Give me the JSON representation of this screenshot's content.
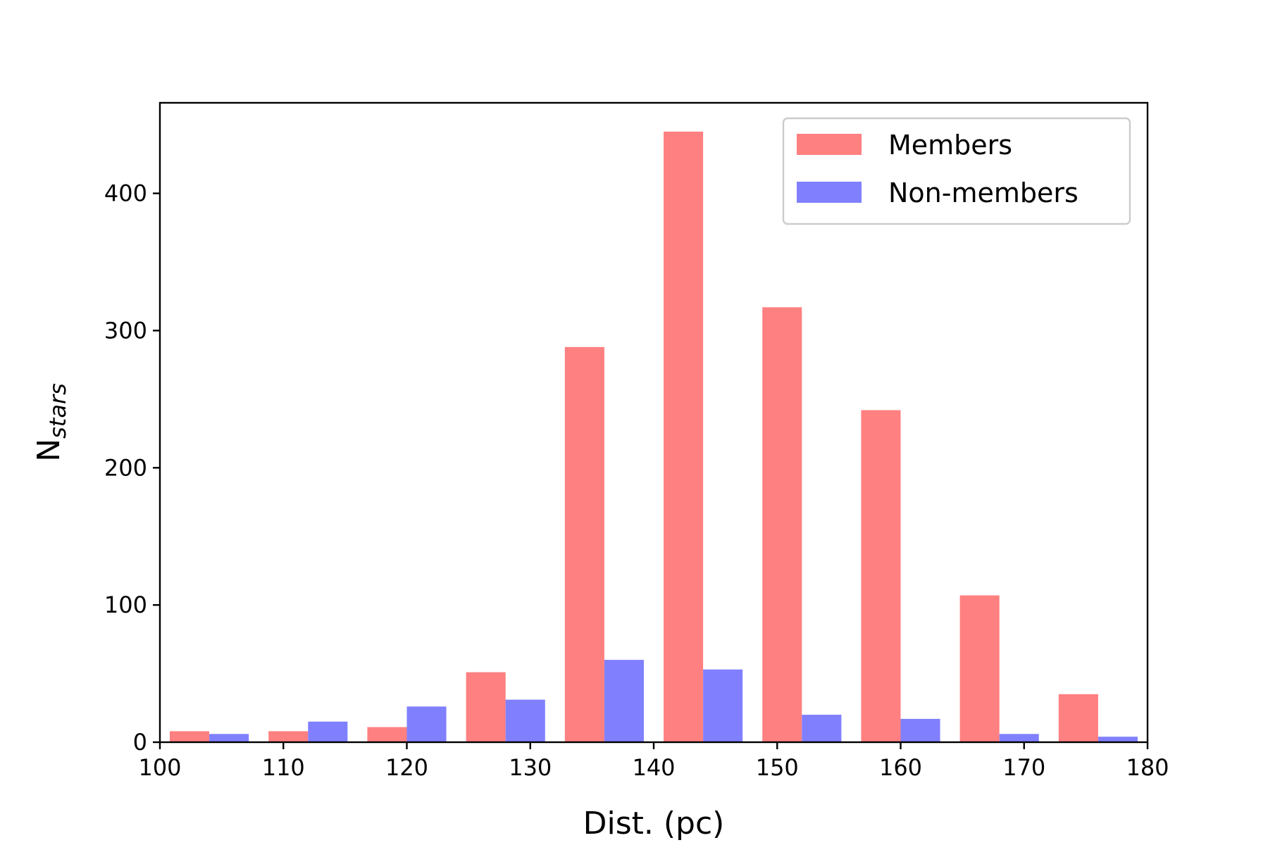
{
  "chart_data": {
    "type": "bar",
    "xlabel": "Dist. (pc)",
    "ylabel_main": "N",
    "ylabel_sub": "stars",
    "xlim": [
      100,
      180
    ],
    "ylim": [
      0,
      466
    ],
    "x_ticks": [
      100,
      110,
      120,
      130,
      140,
      150,
      160,
      170,
      180
    ],
    "y_ticks": [
      0,
      100,
      200,
      300,
      400
    ],
    "bin_edges": [
      100,
      108,
      116,
      124,
      132,
      140,
      148,
      156,
      164,
      172,
      180
    ],
    "series": [
      {
        "name": "Members",
        "color": "#ff8080",
        "values": [
          8,
          8,
          11,
          51,
          288,
          445,
          317,
          242,
          107,
          35
        ]
      },
      {
        "name": "Non-members",
        "color": "#8080ff",
        "values": [
          6,
          15,
          26,
          31,
          60,
          53,
          20,
          17,
          6,
          4
        ]
      }
    ],
    "legend_position": "upper right"
  }
}
